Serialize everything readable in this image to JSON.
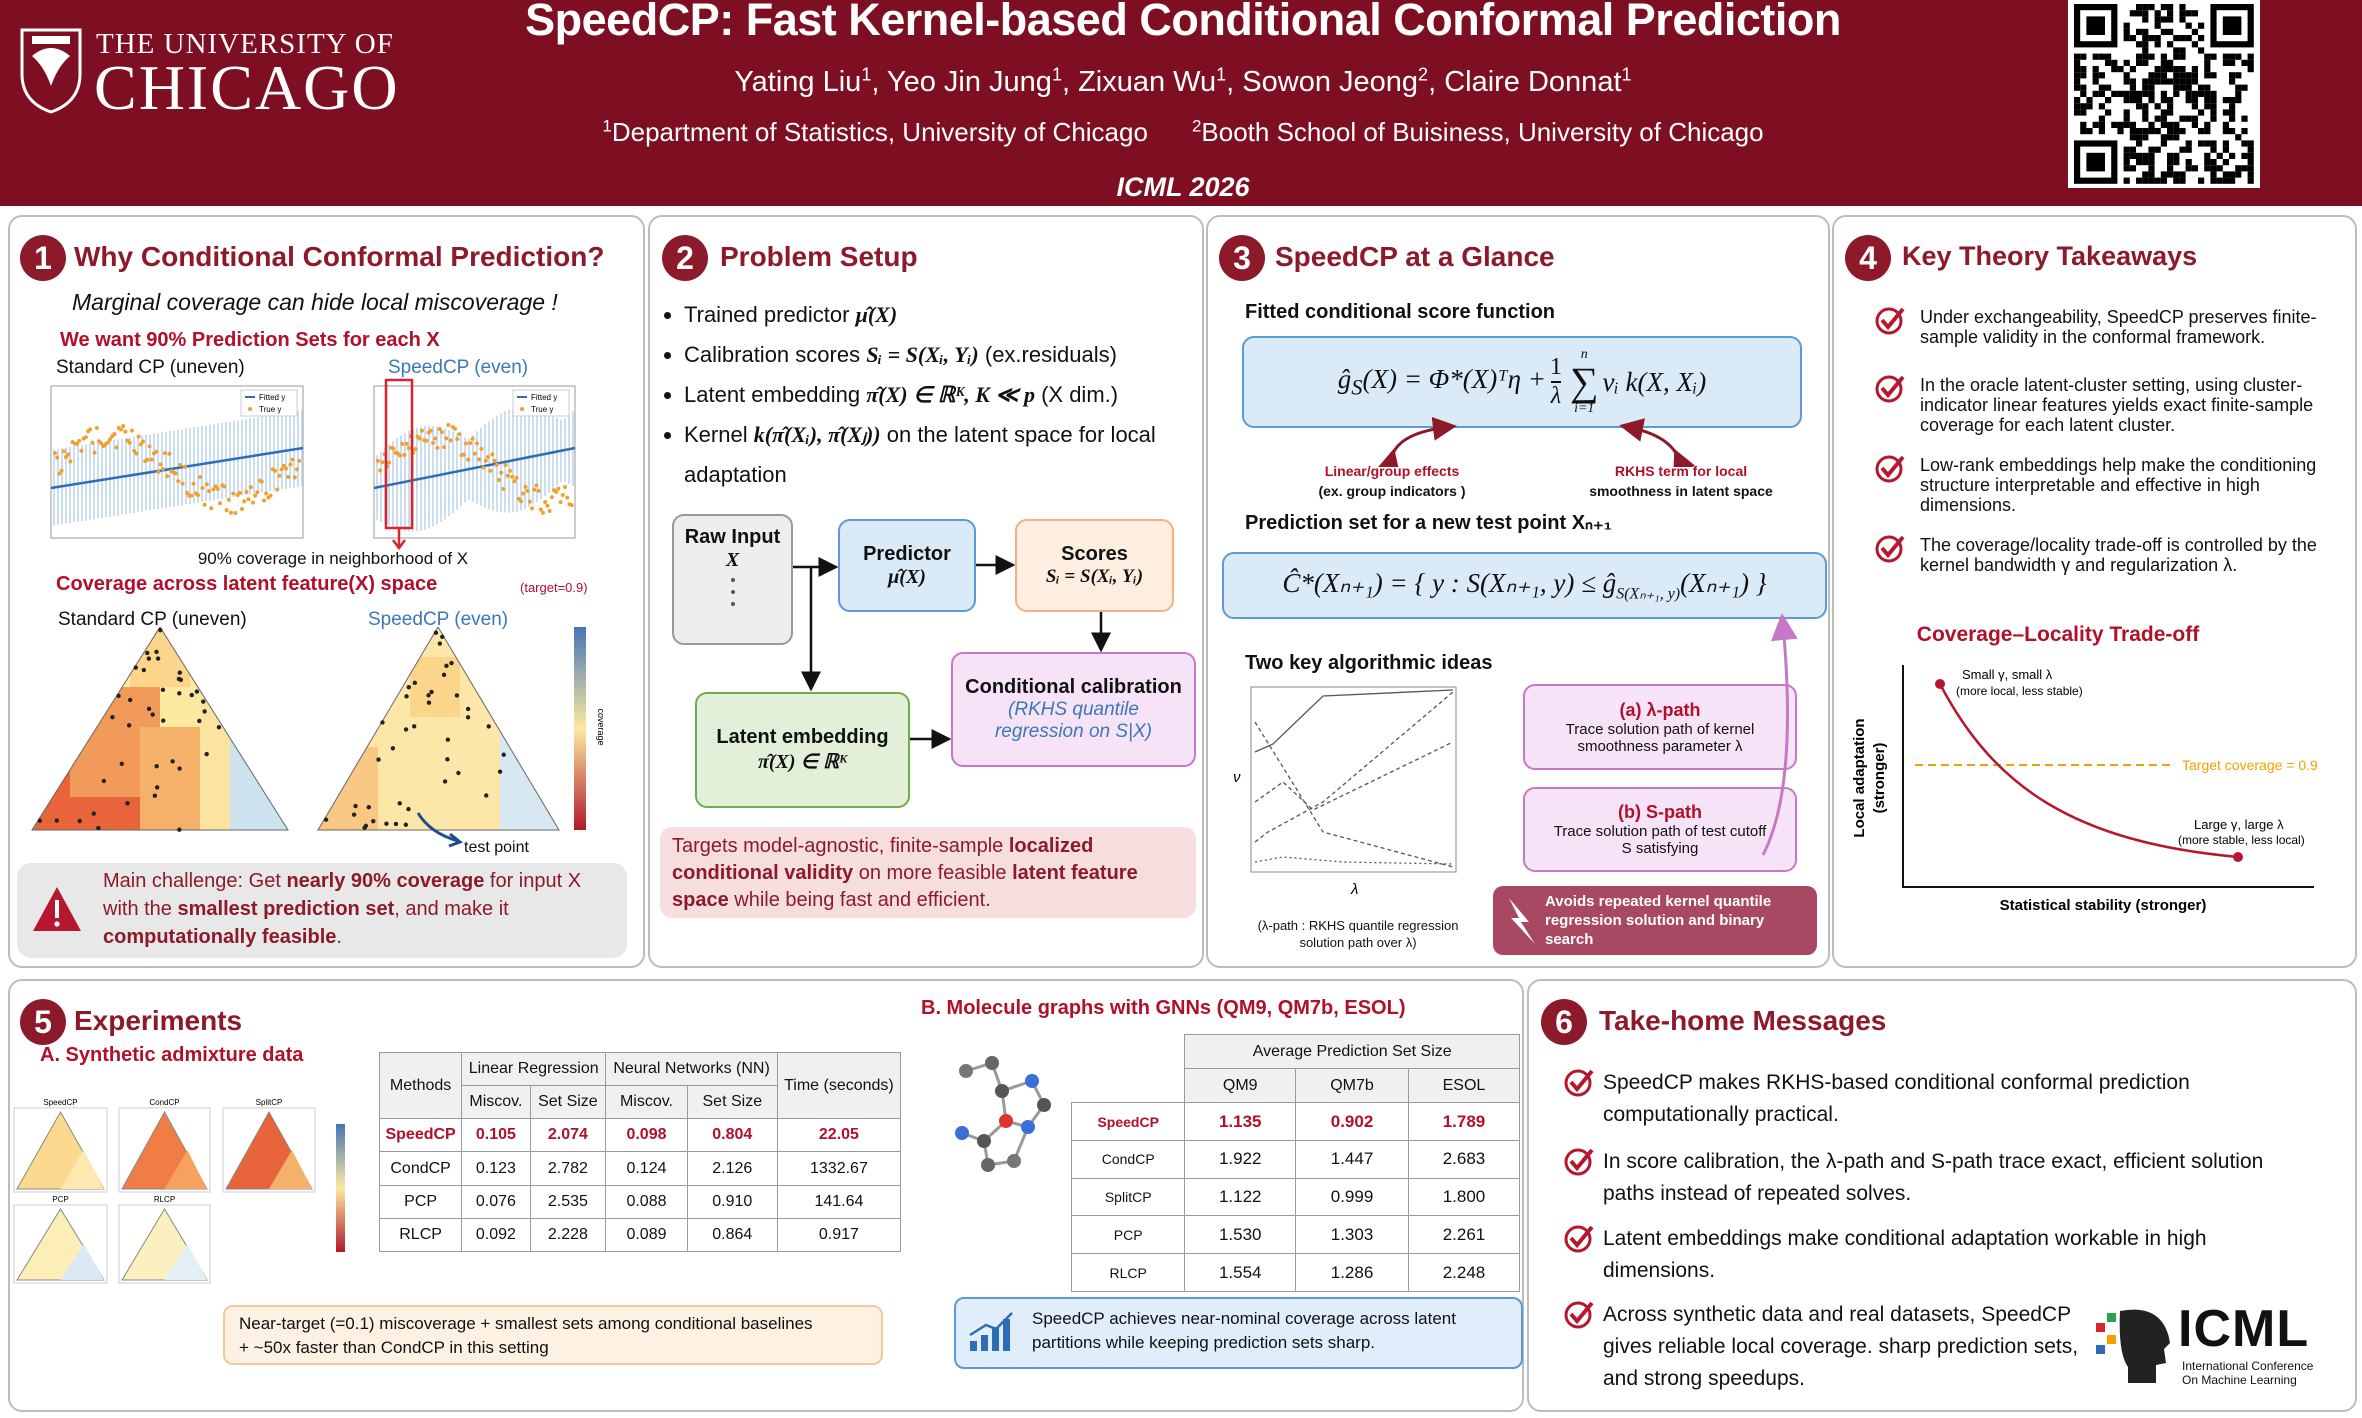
{
  "header": {
    "university_line1": "THE UNIVERSITY OF",
    "university_line2": "CHICAGO",
    "title": "SpeedCP: Fast Kernel-based Conditional Conformal Prediction",
    "authors": [
      {
        "name": "Yating Liu",
        "aff": "1"
      },
      {
        "name": "Yeo Jin Jung",
        "aff": "1"
      },
      {
        "name": "Zixuan Wu",
        "aff": "1"
      },
      {
        "name": "Sowon Jeong",
        "aff": "2"
      },
      {
        "name": "Claire Donnat",
        "aff": "1"
      }
    ],
    "affiliations": [
      {
        "mark": "1",
        "text": "Department of Statistics, University of Chicago"
      },
      {
        "mark": "2",
        "text": "Booth School of Buisiness, University of Chicago"
      }
    ],
    "venue": "ICML 2026"
  },
  "s1": {
    "number": "1",
    "title": "Why Conditional Conformal Prediction?",
    "subtitle": "Marginal coverage can hide local miscoverage !",
    "want": "We want 90% Prediction Sets for each X",
    "plot_left": "Standard CP (uneven)",
    "plot_right": "SpeedCP (even)",
    "legend": [
      "Fitted y",
      "True y"
    ],
    "neighborhood": "90% coverage in neighborhood of X",
    "coverage_title": "Coverage across latent feature(X) space",
    "target": "(target=0.9)",
    "tri_left": "Standard CP (uneven)",
    "tri_right": "SpeedCP (even)",
    "colorbar_label": "coverage",
    "test_point": "test point",
    "challenge": [
      "Main challenge: Get ",
      "nearly 90% coverage",
      " for input X with the ",
      "smallest prediction set",
      ", and make it ",
      "computationally feasible",
      "."
    ]
  },
  "s2": {
    "number": "2",
    "title": "Problem Setup",
    "bullets": [
      [
        "Trained predictor ",
        "μ̂(X)"
      ],
      [
        "Calibration scores ",
        "Sᵢ = S(Xᵢ, Yᵢ)",
        " (ex.residuals)"
      ],
      [
        "Latent embedding ",
        "π̂(X) ∈ ℝᴷ, K ≪ p",
        " (X dim.)"
      ],
      [
        "Kernel ",
        "k(π̂(Xᵢ), π̂(Xⱼ))",
        " on the latent space for local adaptation"
      ]
    ],
    "flow": {
      "raw": "Raw Input",
      "raw_math": "X",
      "predictor": "Predictor",
      "predictor_math": "μ̂(X)",
      "scores": "Scores",
      "scores_math": "Sᵢ = S(Xᵢ, Yᵢ)",
      "latent": "Latent embedding",
      "latent_math": "π̂(X) ∈ ℝᴷ",
      "calib": "Conditional calibration",
      "calib_sub": "(RKHS quantile regression on S|X)"
    },
    "note": [
      "Targets model-agnostic, finite-sample ",
      "localized conditional validity",
      " on more feasible ",
      "latent feature space",
      " while being fast and efficient."
    ]
  },
  "s3": {
    "number": "3",
    "title": "SpeedCP at a Glance",
    "fitted": "Fitted conditional score function",
    "formula": [
      "ĝ",
      "S",
      "(X) = Φ*(X)ᵀη + ",
      "1",
      "λ",
      "n",
      "∑",
      "i=1",
      "νᵢ k(X, Xᵢ)"
    ],
    "ann_left": [
      "Linear/group effects",
      "(ex. group indicators )"
    ],
    "ann_right": [
      "RKHS term for local",
      "smoothness in latent space"
    ],
    "pred_set_title": "Prediction set for a new test point Xₙ₊₁",
    "pred_set": [
      "Ĉ*(Xₙ₊₁) = { y : S(Xₙ₊₁, y) ≤ ĝ",
      "S(Xₙ₊₁, y)",
      "(Xₙ₊₁) }"
    ],
    "ideas": "Two key algorithmic ideas",
    "path_ylabel": "ν",
    "path_xlabel": "λ",
    "path_caption": [
      "(λ-path : RKHS quantile regression",
      "solution path over λ)"
    ],
    "lambda_title": "(a) λ-path",
    "lambda_text": "Trace solution path of kernel smoothness parameter λ",
    "s_title": "(b) S-path",
    "s_text": "Trace solution path of test cutoff S satisfying",
    "avoid": "Avoids repeated kernel quantile regression solution and binary search"
  },
  "s4": {
    "number": "4",
    "title": "Key Theory Takeaways",
    "items": [
      "Under exchangeability, SpeedCP preserves finite-sample validity in the conformal framework.",
      "In the oracle latent-cluster setting, using cluster-indicator linear features yields exact finite-sample coverage for each latent cluster.",
      "Low-rank embeddings help make the conditioning structure interpretable and effective in high dimensions.",
      "The coverage/locality trade-off is controlled by the kernel bandwidth γ and regularization λ."
    ],
    "chart": {
      "title": "Coverage–Locality Trade-off",
      "xlabel": "Statistical stability (stronger)",
      "ylabel": [
        "Local adaptation",
        "(stronger)"
      ],
      "target": "Target coverage = 0.9",
      "ann_top": [
        "Small γ, small λ",
        "(more local, less stable)"
      ],
      "ann_bottom": [
        "Large γ, large λ",
        "(more stable, less local)"
      ]
    }
  },
  "s5": {
    "number": "5",
    "title": "Experiments",
    "a_title": "A. Synthetic admixture data",
    "tri_labels": [
      "SpeedCP",
      "CondCP",
      "SplitCP",
      "PCP",
      "RLCP"
    ],
    "table_a": {
      "header_top": [
        "Methods",
        "Linear Regression",
        "Neural Networks (NN)",
        "Time (seconds)"
      ],
      "header_sub": [
        "Miscov.",
        "Set Size",
        "Miscov.",
        "Set Size"
      ],
      "rows": [
        [
          "SpeedCP",
          "0.105",
          "2.074",
          "0.098",
          "0.804",
          "22.05"
        ],
        [
          "CondCP",
          "0.123",
          "2.782",
          "0.124",
          "2.126",
          "1332.67"
        ],
        [
          "PCP",
          "0.076",
          "2.535",
          "0.088",
          "0.910",
          "141.64"
        ],
        [
          "RLCP",
          "0.092",
          "2.228",
          "0.089",
          "0.864",
          "0.917"
        ]
      ]
    },
    "a_note": [
      "Near-target (=0.1) miscoverage + smallest sets among conditional baselines",
      "+ ~50x faster than CondCP in this setting"
    ],
    "b_title": "B. Molecule graphs with GNNs (QM9, QM7b, ESOL)",
    "table_b": {
      "header_top": "Average Prediction Set Size",
      "header_sub": [
        "QM9",
        "QM7b",
        "ESOL"
      ],
      "rows": [
        [
          "SpeedCP",
          "1.135",
          "0.902",
          "1.789"
        ],
        [
          "CondCP",
          "1.922",
          "1.447",
          "2.683"
        ],
        [
          "SplitCP",
          "1.122",
          "0.999",
          "1.800"
        ],
        [
          "PCP",
          "1.530",
          "1.303",
          "2.261"
        ],
        [
          "RLCP",
          "1.554",
          "1.286",
          "2.248"
        ]
      ]
    },
    "b_note": "SpeedCP achieves near-nominal coverage across latent partitions while keeping prediction sets sharp."
  },
  "s6": {
    "number": "6",
    "title": "Take-home Messages",
    "items": [
      "SpeedCP makes RKHS-based conditional conformal prediction computationally practical.",
      "In score calibration, the λ-path and S-path trace exact, efficient solution paths instead of repeated solves.",
      "Latent embeddings make conditional adaptation workable in high dimensions.",
      "Across synthetic data and real datasets, SpeedCP gives reliable local coverage. sharp prediction sets, and strong speedups."
    ],
    "logo": "ICML",
    "logo_sub": [
      "International Conference",
      "On Machine Learning"
    ]
  }
}
